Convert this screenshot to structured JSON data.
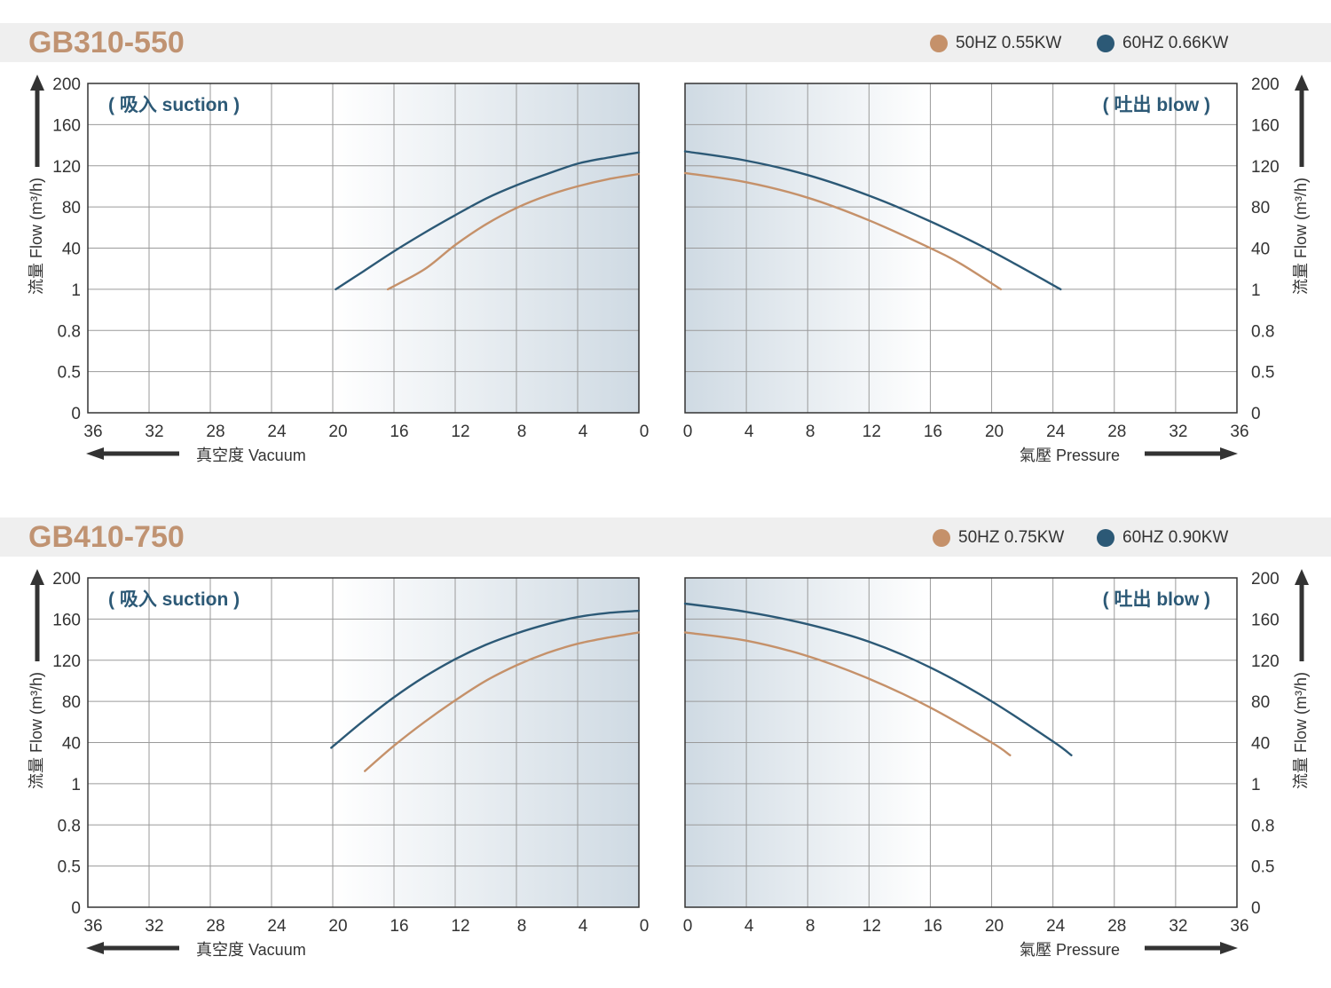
{
  "colors": {
    "hz50": "#c5916a",
    "hz60": "#2c5976",
    "grid": "#9a9a9a",
    "axis": "#333333",
    "title": "#c09372",
    "corner_label": "#2c5976",
    "shade": "#cfdae3"
  },
  "panels": [
    {
      "model": "GB310-550",
      "legend": [
        {
          "label": "50HZ  0.55KW",
          "color_key": "hz50"
        },
        {
          "label": "60HZ  0.66KW",
          "color_key": "hz60"
        }
      ],
      "suction_label": "( 吸入 suction )",
      "blow_label": "( 吐出 blow )",
      "y_axis_label": "流量 Flow (m³/h)",
      "vacuum_label": "真空度  Vacuum",
      "pressure_label": "氣壓  Pressure"
    },
    {
      "model": "GB410-750",
      "legend": [
        {
          "label": "50HZ  0.75KW",
          "color_key": "hz50"
        },
        {
          "label": "60HZ  0.90KW",
          "color_key": "hz60"
        }
      ],
      "suction_label": "( 吸入 suction )",
      "blow_label": "( 吐出 blow )",
      "y_axis_label": "流量 Flow (m³/h)",
      "vacuum_label": "真空度  Vacuum",
      "pressure_label": "氣壓  Pressure"
    }
  ],
  "chart_data": [
    {
      "type": "line",
      "model": "GB310-550",
      "side": "suction",
      "xlabel": "真空度  Vacuum",
      "ylabel": "流量 Flow (m³/h)",
      "x_ticks": [
        "36",
        "32",
        "28",
        "24",
        "20",
        "16",
        "12",
        "8",
        "4",
        "0"
      ],
      "y_ticks": [
        "0",
        "0.5",
        "0.8",
        "1",
        "40",
        "80",
        "120",
        "160",
        "200"
      ],
      "xlim": [
        36,
        0
      ],
      "grid": true,
      "series": [
        {
          "name": "50HZ  0.55KW",
          "color_key": "hz50",
          "x": [
            16.4,
            14,
            12,
            10,
            8,
            6,
            4,
            2,
            0
          ],
          "y": [
            1,
            20,
            43,
            63,
            79,
            91,
            100,
            107,
            112
          ]
        },
        {
          "name": "60HZ  0.66KW",
          "color_key": "hz60",
          "x": [
            19.8,
            18,
            16,
            14,
            12,
            10,
            8,
            6,
            4,
            2,
            0
          ],
          "y": [
            1,
            18,
            37,
            55,
            72,
            88,
            101,
            112,
            122,
            128,
            133
          ]
        }
      ]
    },
    {
      "type": "line",
      "model": "GB310-550",
      "side": "blow",
      "xlabel": "氣壓  Pressure",
      "ylabel": "流量 Flow (m³/h)",
      "x_ticks": [
        "0",
        "4",
        "8",
        "12",
        "16",
        "20",
        "24",
        "28",
        "32",
        "36"
      ],
      "y_ticks": [
        "0",
        "0.5",
        "0.8",
        "1",
        "40",
        "80",
        "120",
        "160",
        "200"
      ],
      "xlim": [
        0,
        36
      ],
      "grid": true,
      "series": [
        {
          "name": "50HZ  0.55KW",
          "color_key": "hz50",
          "x": [
            0,
            4,
            8,
            12,
            16,
            18,
            20.6
          ],
          "y": [
            113,
            104,
            89,
            67,
            40,
            25,
            1
          ]
        },
        {
          "name": "60HZ  0.66KW",
          "color_key": "hz60",
          "x": [
            0,
            4,
            8,
            12,
            16,
            20,
            24.5
          ],
          "y": [
            134,
            125,
            111,
            91,
            66,
            37,
            1
          ]
        }
      ]
    },
    {
      "type": "line",
      "model": "GB410-750",
      "side": "suction",
      "xlabel": "真空度  Vacuum",
      "ylabel": "流量 Flow (m³/h)",
      "x_ticks": [
        "36",
        "32",
        "28",
        "24",
        "20",
        "16",
        "12",
        "8",
        "4",
        "0"
      ],
      "y_ticks": [
        "0",
        "0.5",
        "0.8",
        "1",
        "40",
        "80",
        "120",
        "160",
        "200"
      ],
      "xlim": [
        36,
        0
      ],
      "grid": true,
      "series": [
        {
          "name": "50HZ  0.75KW",
          "color_key": "hz50",
          "x": [
            17.9,
            16,
            14,
            12,
            10,
            8,
            6,
            4,
            2,
            0
          ],
          "y": [
            13,
            37,
            60,
            81,
            100,
            115,
            127,
            136,
            142,
            147
          ]
        },
        {
          "name": "60HZ  0.90KW",
          "color_key": "hz60",
          "x": [
            20.1,
            18,
            16,
            14,
            12,
            10,
            8,
            6,
            4,
            2,
            0
          ],
          "y": [
            35,
            61,
            84,
            104,
            121,
            135,
            146,
            155,
            162,
            166,
            168
          ]
        }
      ]
    },
    {
      "type": "line",
      "model": "GB410-750",
      "side": "blow",
      "xlabel": "氣壓  Pressure",
      "ylabel": "流量 Flow (m³/h)",
      "x_ticks": [
        "0",
        "4",
        "8",
        "12",
        "16",
        "20",
        "24",
        "28",
        "32",
        "36"
      ],
      "y_ticks": [
        "0",
        "0.5",
        "0.8",
        "1",
        "40",
        "80",
        "120",
        "160",
        "200"
      ],
      "xlim": [
        0,
        36
      ],
      "grid": true,
      "series": [
        {
          "name": "50HZ  0.75KW",
          "color_key": "hz50",
          "x": [
            0,
            4,
            8,
            12,
            16,
            20,
            21.2
          ],
          "y": [
            147,
            139,
            124,
            102,
            74,
            40,
            28
          ]
        },
        {
          "name": "60HZ  0.90KW",
          "color_key": "hz60",
          "x": [
            0,
            4,
            8,
            12,
            16,
            20,
            24,
            25.2
          ],
          "y": [
            175,
            167,
            155,
            138,
            113,
            80,
            41,
            28
          ]
        }
      ]
    }
  ]
}
